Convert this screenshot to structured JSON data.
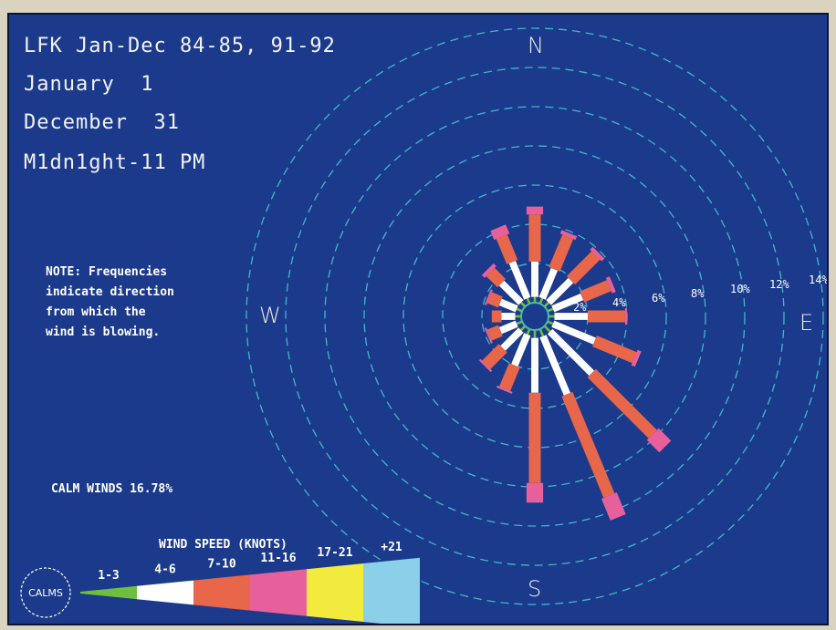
{
  "header": {
    "line1": "LFK Jan-Dec 84-85, 91-92",
    "line2": "January  1",
    "line3": "December  31",
    "line4": "M1dn1ght-11 PM"
  },
  "note": {
    "line1": "NOTE: Frequencies",
    "line2": "indicate direction",
    "line3": "from which the",
    "line4": "wind is blowing."
  },
  "compass": {
    "n": "N",
    "s": "S",
    "e": "E",
    "w": "W"
  },
  "calm_text": "CALM WINDS 16.78%",
  "legend": {
    "title": "WIND SPEED (KNOTS)",
    "calms_label": "CALMS",
    "bins": [
      {
        "label": "1-3",
        "color": "#6fbf3f"
      },
      {
        "label": "4-6",
        "color": "#ffffff"
      },
      {
        "label": "7-10",
        "color": "#e8664a"
      },
      {
        "label": "11-16",
        "color": "#e7609c"
      },
      {
        "label": "17-21",
        "color": "#f2ea3c"
      },
      {
        "label": "+21",
        "color": "#8ccfe8"
      }
    ]
  },
  "colors": {
    "background": "#1c3a8c",
    "rings": "#3fb8c8"
  },
  "chart_data": {
    "type": "wind-rose",
    "rings": [
      "2%",
      "4%",
      "6%",
      "8%",
      "10%",
      "12%",
      "14%"
    ],
    "ring_values": [
      2,
      4,
      6,
      8,
      10,
      12,
      14
    ],
    "directions": [
      "N",
      "NNE",
      "NE",
      "ENE",
      "E",
      "ESE",
      "SE",
      "SSE",
      "S",
      "SSW",
      "SW",
      "WSW",
      "W",
      "WNW",
      "NW",
      "NNW"
    ],
    "series": [
      {
        "name": "1-3",
        "values": [
          0.3,
          0.3,
          0.3,
          0.3,
          0.3,
          0.3,
          0.4,
          0.4,
          0.4,
          0.3,
          0.3,
          0.3,
          0.3,
          0.3,
          0.3,
          0.3
        ]
      },
      {
        "name": "4-6",
        "values": [
          1.8,
          1.6,
          1.6,
          1.6,
          1.7,
          2.3,
          3.0,
          3.2,
          2.8,
          1.7,
          1.3,
          0.9,
          0.7,
          0.9,
          1.4,
          2.0
        ]
      },
      {
        "name": "7-10",
        "values": [
          2.4,
          1.8,
          1.8,
          1.5,
          1.9,
          2.2,
          4.4,
          5.6,
          4.6,
          1.3,
          1.2,
          0.6,
          0.5,
          0.6,
          0.8,
          1.4
        ]
      },
      {
        "name": "11-16",
        "values": [
          0.4,
          0.2,
          0.2,
          0.2,
          0.1,
          0.2,
          0.9,
          1.2,
          1.0,
          0.1,
          0.1,
          0.1,
          0.0,
          0.1,
          0.2,
          0.5
        ]
      },
      {
        "name": "17-21",
        "values": [
          0,
          0,
          0,
          0,
          0,
          0,
          0,
          0,
          0,
          0,
          0,
          0,
          0,
          0,
          0,
          0
        ]
      },
      {
        "name": "+21",
        "values": [
          0,
          0,
          0,
          0,
          0,
          0,
          0,
          0,
          0,
          0,
          0,
          0,
          0,
          0,
          0,
          0
        ]
      }
    ],
    "calm_percent": 16.78
  }
}
